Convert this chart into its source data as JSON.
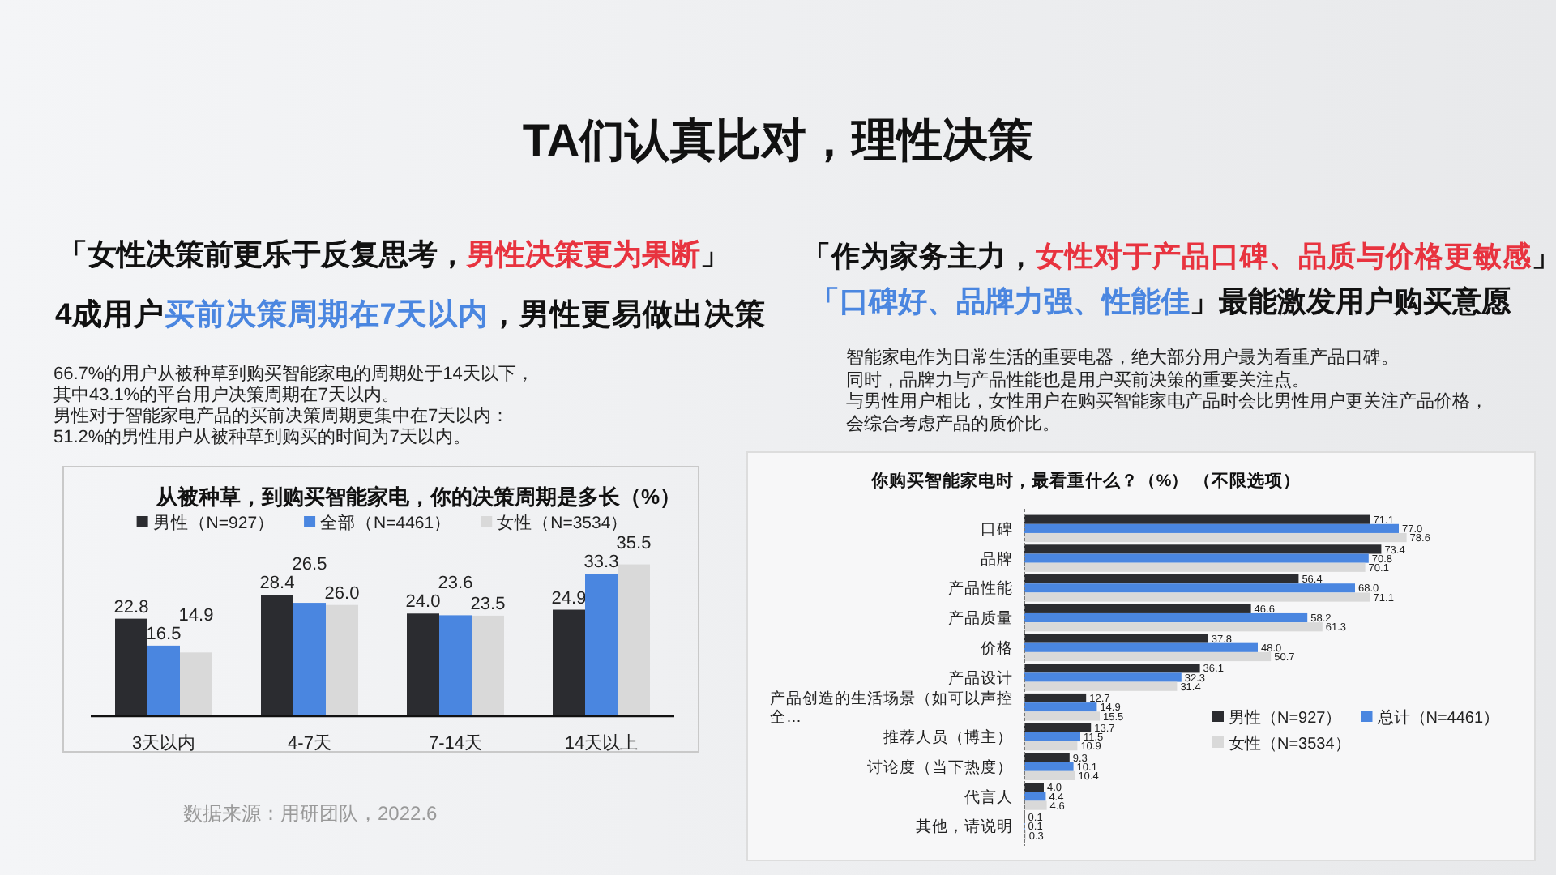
{
  "chart_data": [
    {
      "type": "other",
      "title": "TA们认真比对，理性决策"
    },
    {
      "type": "bar",
      "title": "从被种草，到购买智能家电，你的决策周期是多长（%）",
      "categories": [
        "3天以内",
        "4-7天",
        "7-14天",
        "14天以上"
      ],
      "series": [
        {
          "name": "男性（N=927）",
          "color": "#2b2c30",
          "values": [
            22.8,
            28.4,
            24.0,
            24.9
          ],
          "value_labels": [
            "22.8",
            "28.4",
            "24.0",
            "24.9"
          ]
        },
        {
          "name": "全部（N=4461）",
          "color": "#4a86e0",
          "values": [
            16.5,
            26.5,
            23.6,
            33.3
          ],
          "value_labels": [
            "16.5",
            "26.5",
            "23.6",
            "33.3"
          ]
        },
        {
          "name": "女性（N=3534）",
          "color": "#d9d9d9",
          "values": [
            14.9,
            26.0,
            23.5,
            35.5
          ],
          "value_labels": [
            "14.9",
            "26.0",
            "23.5",
            "35.5"
          ]
        }
      ],
      "tick_labels": "x",
      "legend": "top",
      "annotations": [
        "「女性决策前更乐于反复思考，",
        "男性决策更为果断",
        "」",
        "4成用户",
        "买前决策周期在7天以内",
        "，男性更易做出决策",
        "66.7%的用户从被种草到购买智能家电的周期处于14天以下，",
        "其中43.1%的平台用户决策周期在7天以内。",
        "男性对于智能家电产品的买前决策周期更集中在7天以内：",
        "51.2%的男性用户从被种草到购买的时间为7天以内。",
        "数据来源：用研团队，2022.6"
      ]
    },
    {
      "type": "bar",
      "orientation": "horizontal",
      "title": "你购买智能家电时，最看重什么？（%） （不限选项）",
      "categories": [
        "口碑",
        "品牌",
        "产品性能",
        "产品质量",
        "价格",
        "产品设计",
        "产品创造的生活场景（如可以声控全…",
        "推荐人员（博主）",
        "讨论度（当下热度）",
        "代言人",
        "其他，请说明"
      ],
      "series": [
        {
          "name": "男性（N=927）",
          "color": "#2b2c30",
          "values": [
            71.1,
            73.4,
            56.4,
            46.6,
            37.8,
            36.1,
            12.7,
            13.7,
            9.3,
            4.0,
            0.1
          ],
          "value_labels": [
            "71.1",
            "73.4",
            "56.4",
            "46.6",
            "37.8",
            "36.1",
            "12.7",
            "13.7",
            "9.3",
            "4.0",
            "0.1"
          ]
        },
        {
          "name": "总计（N=4461）",
          "color": "#4a86e0",
          "values": [
            77.0,
            70.8,
            68.0,
            58.2,
            48.0,
            32.3,
            14.9,
            11.5,
            10.1,
            4.4,
            0.1
          ],
          "value_labels": [
            "77.0",
            "70.8",
            "68.0",
            "58.2",
            "48.0",
            "32.3",
            "14.9",
            "11.5",
            "10.1",
            "4.4",
            "0.1"
          ]
        },
        {
          "name": "女性（N=3534）",
          "color": "#d9d9d9",
          "values": [
            78.6,
            70.1,
            71.1,
            61.3,
            50.7,
            31.4,
            15.5,
            10.9,
            10.4,
            4.6,
            0.3
          ],
          "value_labels": [
            "78.6",
            "70.1",
            "71.1",
            "61.3",
            "50.7",
            "31.4",
            "15.5",
            "10.9",
            "10.4",
            "4.6",
            "0.3"
          ]
        }
      ],
      "tick_labels": "y",
      "legend": "bottom right",
      "annotations": [
        "「作为家务主力，",
        "女性对于产品口碑、品质与价格更敏感",
        "」",
        "「口碑好、品牌力强、性能佳",
        "」最能激发用户购买意愿",
        "智能家电作为日常生活的重要电器，绝大部分用户最为看重产品口碑。",
        "同时，品牌力与产品性能也是用户买前决策的重要关注点。",
        "与男性用户相比，女性用户在购买智能家电产品时会比男性用户更关注产品价格，",
        "会综合考虑产品的质价比。"
      ]
    }
  ]
}
